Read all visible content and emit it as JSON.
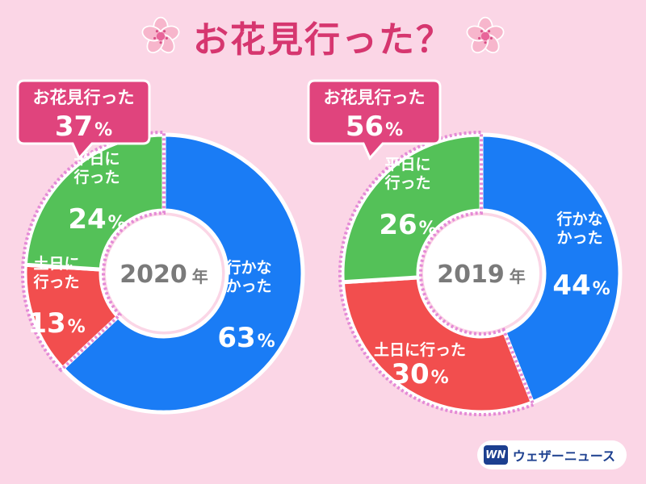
{
  "title": "お花見行った？",
  "colors": {
    "background": "#fbd6e6",
    "title": "#d6366f",
    "callout": "#e0447d",
    "did_not_go": "#1a7cf5",
    "weekend": "#f24e4e",
    "weekday": "#54c158",
    "center": "#ffffff",
    "center_text": "#7a7a7a",
    "dots": "#e48ad6"
  },
  "chart_data": [
    {
      "type": "pie",
      "center_label": "2020",
      "center_unit": "年",
      "callout": {
        "label": "お花見行った",
        "value": 37,
        "unit": "%"
      },
      "slices": [
        {
          "label": "行かな\nかった",
          "value": 63,
          "color": "#1a7cf5"
        },
        {
          "label": "土日に\n行った",
          "value": 13,
          "color": "#f24e4e"
        },
        {
          "label": "平日に\n行った",
          "value": 24,
          "color": "#54c158"
        }
      ],
      "unit": "%"
    },
    {
      "type": "pie",
      "center_label": "2019",
      "center_unit": "年",
      "callout": {
        "label": "お花見行った",
        "value": 56,
        "unit": "%"
      },
      "slices": [
        {
          "label": "行かな\nかった",
          "value": 44,
          "color": "#1a7cf5"
        },
        {
          "label": "土日に行った",
          "value": 30,
          "color": "#f24e4e"
        },
        {
          "label": "平日に\n行った",
          "value": 26,
          "color": "#54c158"
        }
      ],
      "unit": "%"
    }
  ],
  "logo": {
    "mark": "WN",
    "text": "ウェザーニュース"
  }
}
